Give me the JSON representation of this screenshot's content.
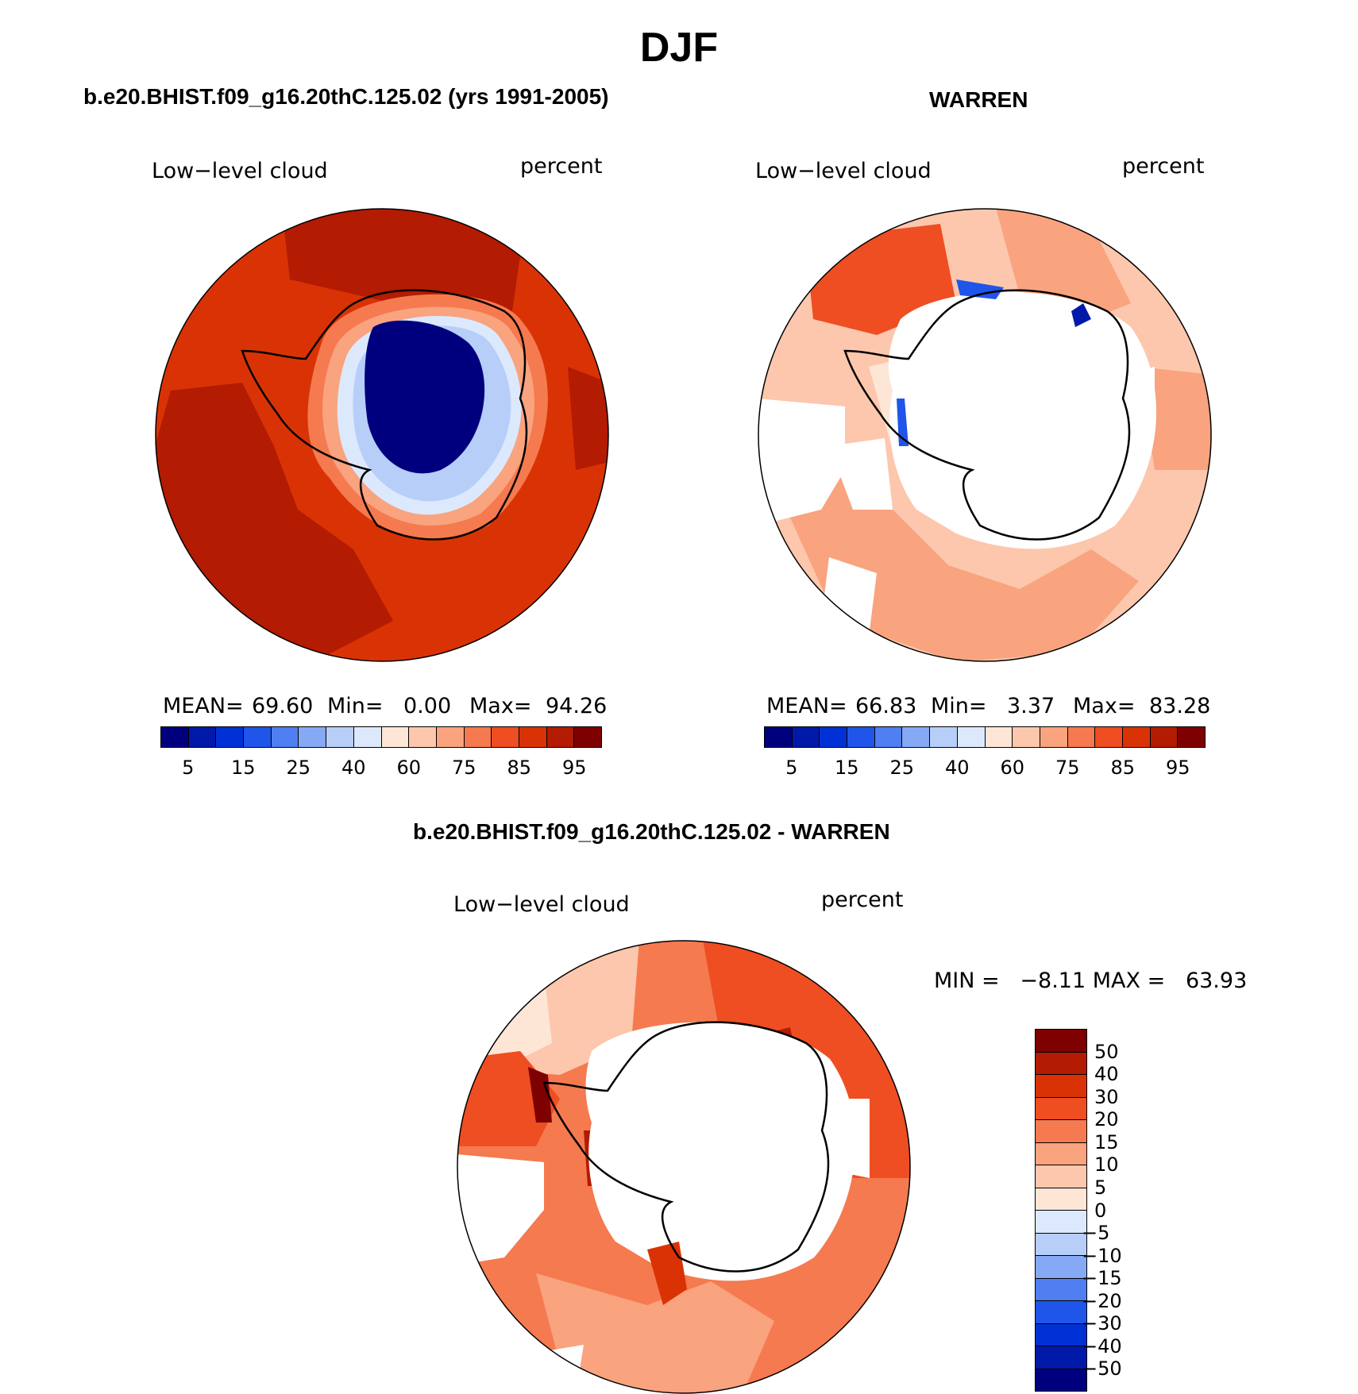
{
  "title": "DJF",
  "panels": [
    {
      "id": "model",
      "title": "b.e20.BHIST.f09_g16.20thC.125.02 (yrs 1991-2005)",
      "variable": "Low−level cloud",
      "units": "percent",
      "stats": {
        "mean_label": "MEAN=",
        "mean": "69.60",
        "min_label": "Min=",
        "min": "0.00",
        "max_label": "Max=",
        "max": "94.26"
      }
    },
    {
      "id": "obs",
      "title": "WARREN",
      "variable": "Low−level cloud",
      "units": "percent",
      "stats": {
        "mean_label": "MEAN=",
        "mean": "66.83",
        "min_label": "Min=",
        "min": "3.37",
        "max_label": "Max=",
        "max": "83.28"
      }
    },
    {
      "id": "diff",
      "title": "b.e20.BHIST.f09_g16.20thC.125.02 - WARREN",
      "variable": "Low−level cloud",
      "units": "percent",
      "stats_text": "MIN =   −8.11 MAX =   63.93"
    }
  ],
  "colorbar_field": {
    "ticks": [
      "5",
      "15",
      "25",
      "40",
      "60",
      "75",
      "85",
      "95"
    ],
    "colors": [
      "#00007f",
      "#0019a8",
      "#0031d6",
      "#1f55e8",
      "#4f7ff0",
      "#86a9f5",
      "#b7cef9",
      "#dce9fd",
      "#fde6d6",
      "#fcc7ad",
      "#f9a37f",
      "#f57a4f",
      "#ee4e21",
      "#d93305",
      "#b31b02",
      "#7f0000"
    ]
  },
  "colorbar_diff": {
    "ticks": [
      "50",
      "40",
      "30",
      "20",
      "15",
      "10",
      "5",
      "0",
      "−5",
      "−10",
      "−15",
      "−20",
      "−30",
      "−40",
      "−50"
    ],
    "colors": [
      "#7f0000",
      "#b31b02",
      "#d93305",
      "#ee4e21",
      "#f57a4f",
      "#f9a37f",
      "#fcc7ad",
      "#fde6d6",
      "#dce9fd",
      "#b7cef9",
      "#86a9f5",
      "#4f7ff0",
      "#1f55e8",
      "#0031d6",
      "#0019a8",
      "#00007f"
    ]
  }
}
